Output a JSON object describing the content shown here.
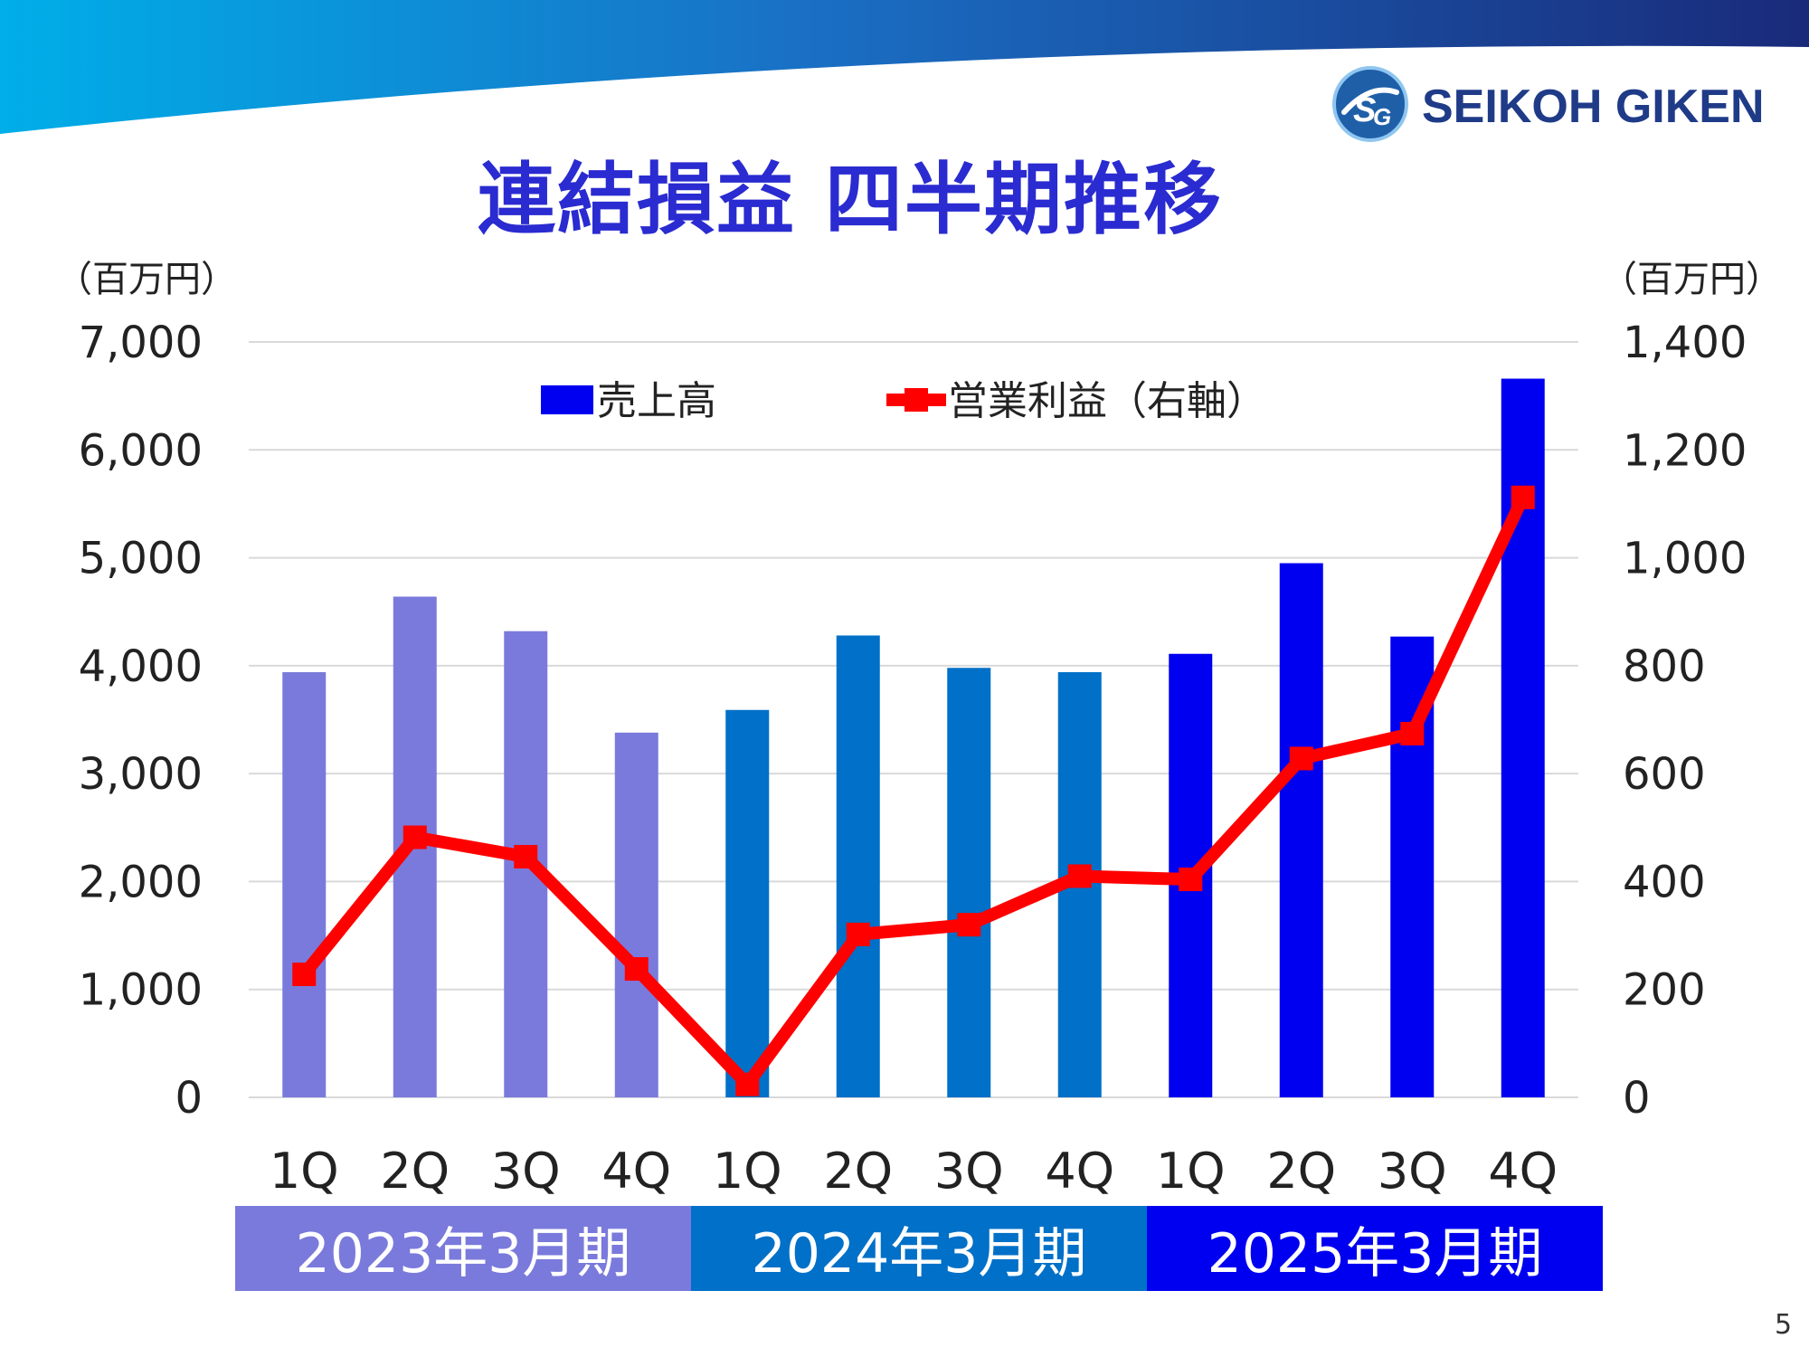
{
  "header": {
    "title": "連結損益 四半期推移",
    "logo_text": "SEIKOH GIKEN",
    "logo_icon": "sg-logo-icon"
  },
  "units": {
    "left": "（百万円）",
    "right": "（百万円）"
  },
  "colors": {
    "banner_start": "#00aee8",
    "banner_end": "#1a2a7a",
    "title": "#2a2bd0",
    "fy2023": "#7a7adc",
    "fy2024": "#0070c8",
    "fy2025": "#0000f0",
    "line": "#ff0000"
  },
  "chart_data": {
    "type": "bar",
    "categories": [
      "1Q",
      "2Q",
      "3Q",
      "4Q",
      "1Q",
      "2Q",
      "3Q",
      "4Q",
      "1Q",
      "2Q",
      "3Q",
      "4Q"
    ],
    "groups": [
      {
        "label": "2023年3月期",
        "color": "#7a7adc",
        "count": 4
      },
      {
        "label": "2024年3月期",
        "color": "#0070c8",
        "count": 4
      },
      {
        "label": "2025年3月期",
        "color": "#0000f0",
        "count": 4
      }
    ],
    "series": [
      {
        "name": "売上高",
        "type": "bar",
        "axis": "left",
        "values": [
          3940,
          4640,
          4320,
          3380,
          3590,
          4280,
          3980,
          3940,
          4110,
          4950,
          4270,
          6660
        ]
      },
      {
        "name": "営業利益（右軸）",
        "type": "line",
        "axis": "right",
        "color": "#ff0000",
        "values": [
          228,
          482,
          446,
          238,
          24,
          302,
          320,
          410,
          404,
          628,
          674,
          1112
        ]
      }
    ],
    "y_left": {
      "min": 0,
      "max": 7000,
      "ticks": [
        0,
        1000,
        2000,
        3000,
        4000,
        5000,
        6000,
        7000
      ],
      "tick_labels": [
        "0",
        "1,000",
        "2,000",
        "3,000",
        "4,000",
        "5,000",
        "6,000",
        "7,000"
      ]
    },
    "y_right": {
      "min": 0,
      "max": 1400,
      "ticks": [
        0,
        200,
        400,
        600,
        800,
        1000,
        1200,
        1400
      ],
      "tick_labels": [
        "0",
        "200",
        "400",
        "600",
        "800",
        "1,000",
        "1,200",
        "1,400"
      ]
    },
    "grid": true,
    "legend_position": "top-center"
  },
  "page_number": "5"
}
